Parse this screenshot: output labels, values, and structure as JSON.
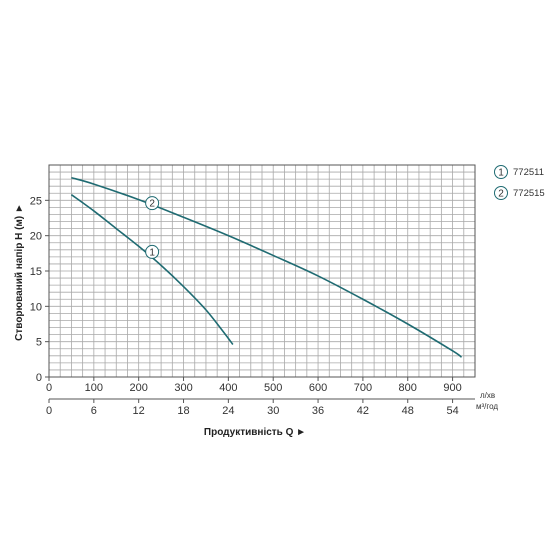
{
  "chart_data": {
    "type": "line",
    "ylabel": "Створюваний напір H (м) ►",
    "xlabel": "Продуктивність  Q  ►",
    "x_unit_primary": "л/хв",
    "x_unit_secondary": "м³/год",
    "x_ticks_primary": [
      "0",
      "100",
      "200",
      "300",
      "400",
      "500",
      "600",
      "700",
      "800",
      "900"
    ],
    "x_ticks_secondary": [
      "0",
      "6",
      "12",
      "18",
      "24",
      "30",
      "36",
      "42",
      "48",
      "54"
    ],
    "y_ticks": [
      "0",
      "5",
      "10",
      "15",
      "20",
      "25"
    ],
    "xlim": [
      0,
      950
    ],
    "ylim": [
      0,
      30
    ],
    "grid": true,
    "legend_position": "right",
    "line_color": "#1f6b72",
    "series": [
      {
        "name": "772511",
        "marker": "1",
        "x": [
          50,
          100,
          150,
          200,
          250,
          300,
          350,
          390,
          410
        ],
        "y": [
          25.8,
          23.5,
          21.0,
          18.5,
          15.8,
          12.8,
          9.5,
          6.3,
          4.6
        ]
      },
      {
        "name": "772515",
        "marker": "2",
        "x": [
          50,
          100,
          200,
          300,
          400,
          500,
          600,
          700,
          800,
          900,
          920
        ],
        "y": [
          28.2,
          27.3,
          25.1,
          22.6,
          20.0,
          17.2,
          14.3,
          11.0,
          7.5,
          3.7,
          2.8
        ]
      }
    ],
    "marker_positions": [
      {
        "label": "1",
        "x": 230,
        "y": 17.7
      },
      {
        "label": "2",
        "x": 230,
        "y": 24.6
      }
    ]
  }
}
